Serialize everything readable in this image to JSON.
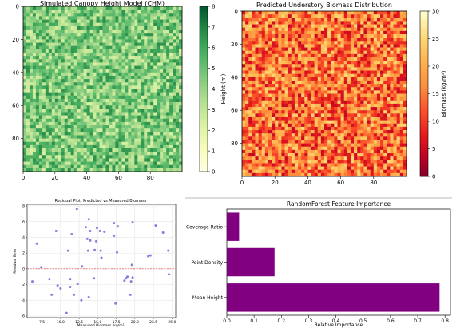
{
  "chart_data": [
    {
      "type": "heatmap",
      "title": "Simulated Canopy Height Model (CHM)",
      "xticks": [
        0,
        20,
        40,
        60,
        80
      ],
      "yticks": [
        0,
        20,
        40,
        60,
        80
      ],
      "grid_size": [
        100,
        100
      ],
      "colormap": "YlGn",
      "colorbar": {
        "label": "Height (m)",
        "ticks": [
          0,
          1,
          2,
          3,
          4,
          5,
          6,
          7,
          8
        ],
        "range": [
          0,
          8
        ]
      }
    },
    {
      "type": "heatmap",
      "title": "Predicted Understory Biomass Distribution",
      "xticks": [
        0,
        20,
        40,
        60,
        80
      ],
      "yticks": [
        0,
        20,
        40,
        60,
        80
      ],
      "grid_size": [
        100,
        100
      ],
      "colormap": "YlOrRd",
      "colorbar": {
        "label": "Biomass (kg/m²)",
        "ticks": [
          0,
          5,
          10,
          15,
          20,
          25,
          30
        ],
        "range": [
          0,
          30
        ]
      }
    },
    {
      "type": "scatter",
      "title": "Residual Plot: Predicted vs Measured Biomass",
      "xlabel": "Measured Biomass (kg/m²)",
      "ylabel": "Residual Error",
      "xlim": [
        5.5,
        25.5
      ],
      "ylim": [
        -6.2,
        8.2
      ],
      "xticks": [
        7.5,
        10.0,
        12.5,
        15.0,
        17.5,
        20.0,
        22.5,
        25.0
      ],
      "yticks": [
        -6,
        -4,
        -2,
        0,
        2,
        4,
        6,
        8
      ],
      "zero_line": true,
      "point_color": "#6b6bd8",
      "points": [
        [
          6.2,
          -1.6
        ],
        [
          6.8,
          3.2
        ],
        [
          7.4,
          0.2
        ],
        [
          8.5,
          -1.3
        ],
        [
          8.8,
          -3.3
        ],
        [
          9.4,
          4.8
        ],
        [
          9.6,
          -2.1
        ],
        [
          10.0,
          -2.5
        ],
        [
          10.8,
          -5.6
        ],
        [
          11.0,
          2.3
        ],
        [
          11.3,
          -1.3
        ],
        [
          11.3,
          -2.3
        ],
        [
          11.5,
          4.4
        ],
        [
          11.8,
          -3.3
        ],
        [
          12.2,
          7.6
        ],
        [
          12.3,
          -1.9
        ],
        [
          12.8,
          -4.0
        ],
        [
          12.9,
          0.3
        ],
        [
          13.4,
          5.3
        ],
        [
          13.6,
          3.8
        ],
        [
          13.7,
          2.3
        ],
        [
          13.8,
          6.3
        ],
        [
          13.8,
          -3.6
        ],
        [
          14.0,
          3.6
        ],
        [
          14.0,
          4.8
        ],
        [
          14.5,
          -1.2
        ],
        [
          14.6,
          2.4
        ],
        [
          14.8,
          3.5
        ],
        [
          14.9,
          5.2
        ],
        [
          15.3,
          4.8
        ],
        [
          15.4,
          2.3
        ],
        [
          15.5,
          1.4
        ],
        [
          15.9,
          4.7
        ],
        [
          17.2,
          4.2
        ],
        [
          17.2,
          5.8
        ],
        [
          17.4,
          -4.4
        ],
        [
          17.6,
          2.1
        ],
        [
          17.7,
          5.4
        ],
        [
          18.6,
          -1.5
        ],
        [
          18.8,
          -1.2
        ],
        [
          19.0,
          -1.0
        ],
        [
          19.4,
          -3.3
        ],
        [
          19.5,
          -1.6
        ],
        [
          19.6,
          0.5
        ],
        [
          19.7,
          -1.1
        ],
        [
          19.7,
          5.9
        ],
        [
          21.8,
          1.6
        ],
        [
          22.1,
          1.7
        ],
        [
          22.8,
          5.5
        ],
        [
          23.8,
          4.6
        ],
        [
          24.5,
          2.3
        ],
        [
          24.6,
          -0.7
        ]
      ]
    },
    {
      "type": "bar",
      "orientation": "horizontal",
      "title": "RandomForest Feature Importance",
      "xlabel": "Relative Importance",
      "categories": [
        "Coverage Ratio",
        "Point Density",
        "Mean Height"
      ],
      "values": [
        0.045,
        0.175,
        0.78
      ],
      "xlim": [
        0,
        0.82
      ],
      "xticks": [
        0.0,
        0.1,
        0.2,
        0.3,
        0.4,
        0.5,
        0.6,
        0.7,
        0.8
      ],
      "bar_color": "#800080"
    }
  ]
}
